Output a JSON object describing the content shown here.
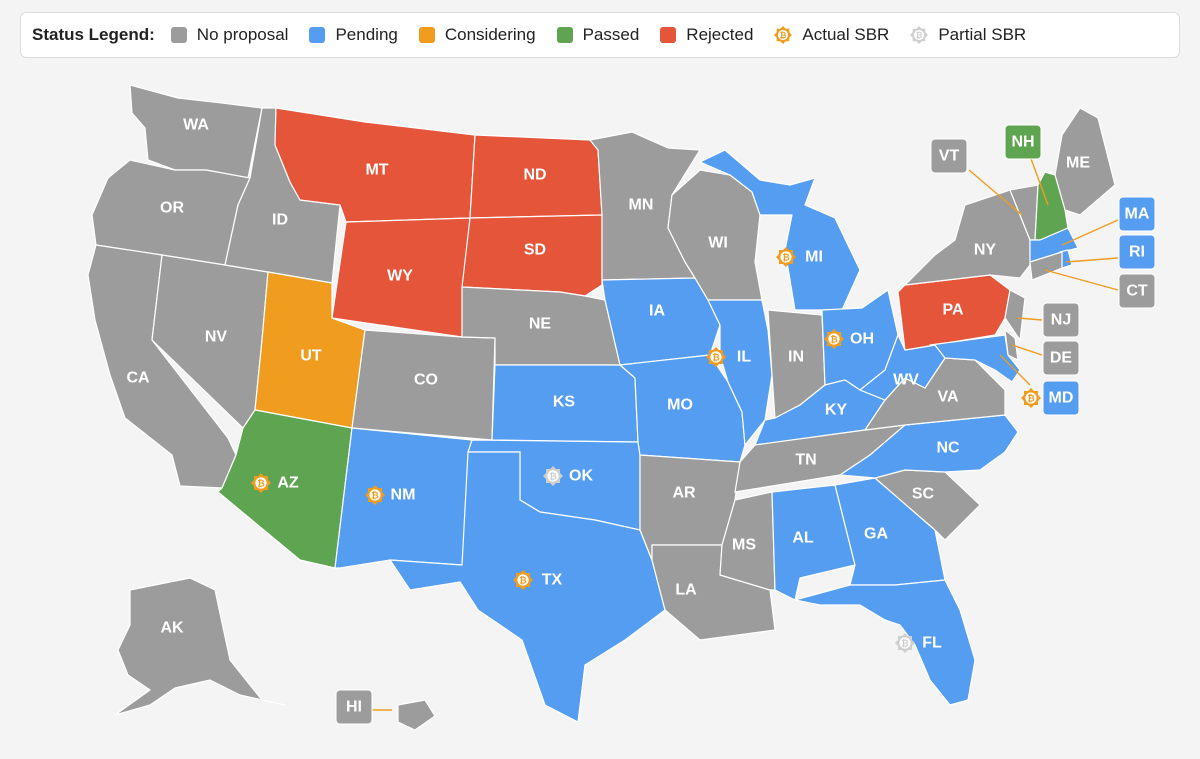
{
  "legend": {
    "title": "Status Legend:",
    "items": [
      {
        "key": "none",
        "label": "No proposal",
        "color": "#9c9c9c",
        "kind": "swatch"
      },
      {
        "key": "pending",
        "label": "Pending",
        "color": "#559df0",
        "kind": "swatch"
      },
      {
        "key": "considering",
        "label": "Considering",
        "color": "#f09c1f",
        "kind": "swatch"
      },
      {
        "key": "passed",
        "label": "Passed",
        "color": "#5fa451",
        "kind": "swatch"
      },
      {
        "key": "rejected",
        "label": "Rejected",
        "color": "#e4553a",
        "kind": "swatch"
      },
      {
        "key": "actual",
        "label": "Actual SBR",
        "color": "#f09c1f",
        "kind": "bitcoin-icon"
      },
      {
        "key": "partial",
        "label": "Partial SBR",
        "color": "#cfcfcf",
        "kind": "bitcoin-icon"
      }
    ]
  },
  "states": [
    {
      "abbr": "WA",
      "status": "none"
    },
    {
      "abbr": "OR",
      "status": "none"
    },
    {
      "abbr": "CA",
      "status": "none"
    },
    {
      "abbr": "NV",
      "status": "none"
    },
    {
      "abbr": "ID",
      "status": "none"
    },
    {
      "abbr": "MT",
      "status": "rejected"
    },
    {
      "abbr": "WY",
      "status": "rejected"
    },
    {
      "abbr": "UT",
      "status": "considering"
    },
    {
      "abbr": "AZ",
      "status": "passed",
      "sbr": "actual"
    },
    {
      "abbr": "CO",
      "status": "none"
    },
    {
      "abbr": "NM",
      "status": "pending",
      "sbr": "actual"
    },
    {
      "abbr": "ND",
      "status": "rejected"
    },
    {
      "abbr": "SD",
      "status": "rejected"
    },
    {
      "abbr": "NE",
      "status": "none"
    },
    {
      "abbr": "KS",
      "status": "pending"
    },
    {
      "abbr": "OK",
      "status": "pending",
      "sbr": "partial"
    },
    {
      "abbr": "TX",
      "status": "pending",
      "sbr": "actual"
    },
    {
      "abbr": "MN",
      "status": "none"
    },
    {
      "abbr": "IA",
      "status": "pending"
    },
    {
      "abbr": "MO",
      "status": "pending"
    },
    {
      "abbr": "AR",
      "status": "none"
    },
    {
      "abbr": "LA",
      "status": "none"
    },
    {
      "abbr": "WI",
      "status": "none"
    },
    {
      "abbr": "IL",
      "status": "pending",
      "sbr": "actual"
    },
    {
      "abbr": "MI",
      "status": "pending",
      "sbr": "actual"
    },
    {
      "abbr": "IN",
      "status": "none"
    },
    {
      "abbr": "OH",
      "status": "pending",
      "sbr": "actual"
    },
    {
      "abbr": "KY",
      "status": "pending"
    },
    {
      "abbr": "TN",
      "status": "none"
    },
    {
      "abbr": "MS",
      "status": "none"
    },
    {
      "abbr": "AL",
      "status": "pending"
    },
    {
      "abbr": "GA",
      "status": "pending"
    },
    {
      "abbr": "FL",
      "status": "pending",
      "sbr": "partial"
    },
    {
      "abbr": "SC",
      "status": "none"
    },
    {
      "abbr": "NC",
      "status": "pending"
    },
    {
      "abbr": "VA",
      "status": "none"
    },
    {
      "abbr": "WV",
      "status": "pending"
    },
    {
      "abbr": "PA",
      "status": "rejected"
    },
    {
      "abbr": "NY",
      "status": "none"
    },
    {
      "abbr": "ME",
      "status": "none"
    },
    {
      "abbr": "AK",
      "status": "none"
    },
    {
      "abbr": "VT",
      "status": "none"
    },
    {
      "abbr": "NH",
      "status": "passed"
    },
    {
      "abbr": "MA",
      "status": "pending"
    },
    {
      "abbr": "RI",
      "status": "pending"
    },
    {
      "abbr": "CT",
      "status": "none"
    },
    {
      "abbr": "NJ",
      "status": "none"
    },
    {
      "abbr": "DE",
      "status": "none"
    },
    {
      "abbr": "MD",
      "status": "pending",
      "sbr": "actual"
    },
    {
      "abbr": "HI",
      "status": "none"
    }
  ]
}
